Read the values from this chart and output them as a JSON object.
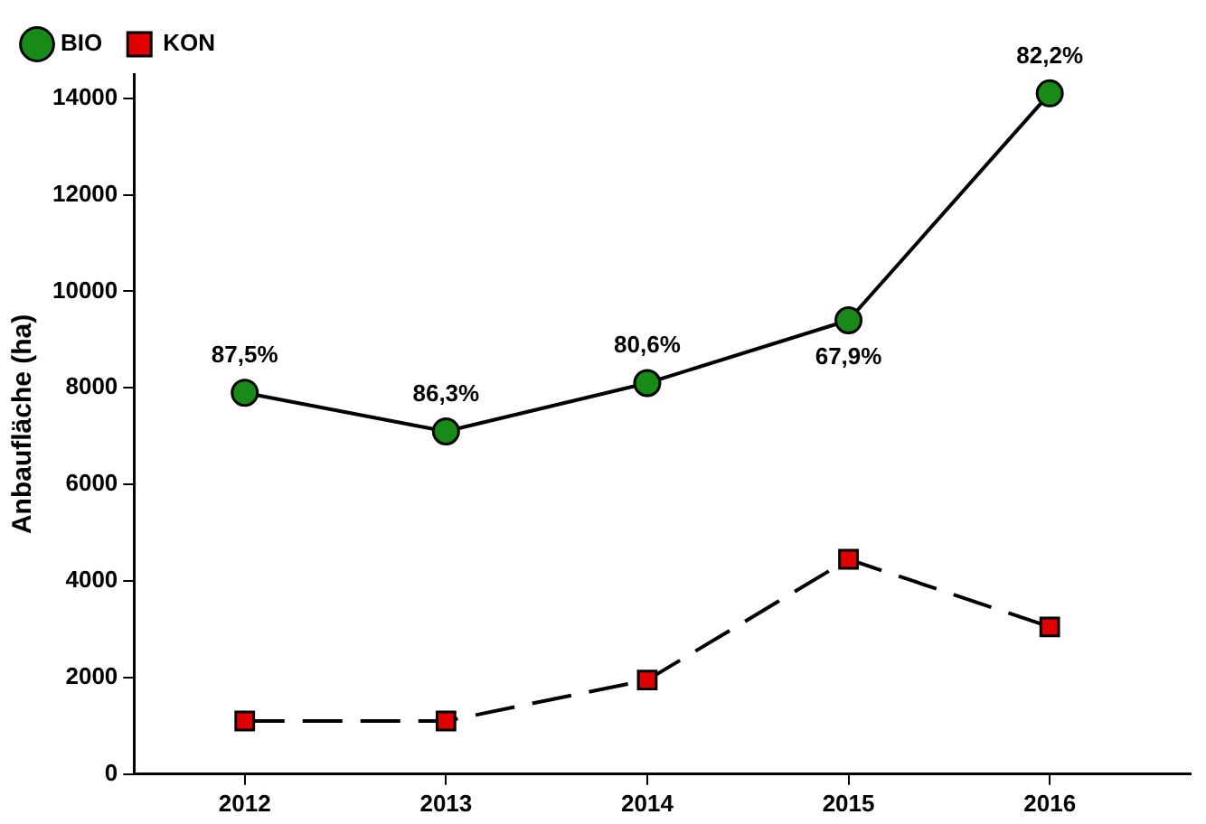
{
  "chart_data": {
    "type": "line",
    "ylabel": "Anbaufläche (ha)",
    "x": [
      2012,
      2013,
      2014,
      2015,
      2016
    ],
    "xlim": [
      2011.45,
      2016.7
    ],
    "xticks": [
      2012,
      2013,
      2014,
      2015,
      2016
    ],
    "ylim": [
      0,
      14500
    ],
    "yticks": [
      0,
      2000,
      4000,
      6000,
      8000,
      10000,
      12000,
      14000
    ],
    "grid": false,
    "legend": "top left",
    "annotations": [
      {
        "text": "87,5%",
        "x": 2012,
        "y": 7900
      },
      {
        "text": "86,3%",
        "x": 2013,
        "y": 7100
      },
      {
        "text": "80,6%",
        "x": 2014,
        "y": 8100
      },
      {
        "text": "67,9%",
        "x": 2015,
        "y": 9400
      },
      {
        "text": "82,2%",
        "x": 2016,
        "y": 14100
      }
    ],
    "series": [
      {
        "name": "BIO",
        "color": "#188a18",
        "marker": "circle",
        "line_style": "solid",
        "values": [
          7900,
          7100,
          8100,
          9400,
          14100
        ]
      },
      {
        "name": "KON",
        "color": "#e00000",
        "marker": "square",
        "line_style": "dashed",
        "values": [
          1100,
          1100,
          1950,
          4450,
          3050
        ]
      }
    ]
  }
}
